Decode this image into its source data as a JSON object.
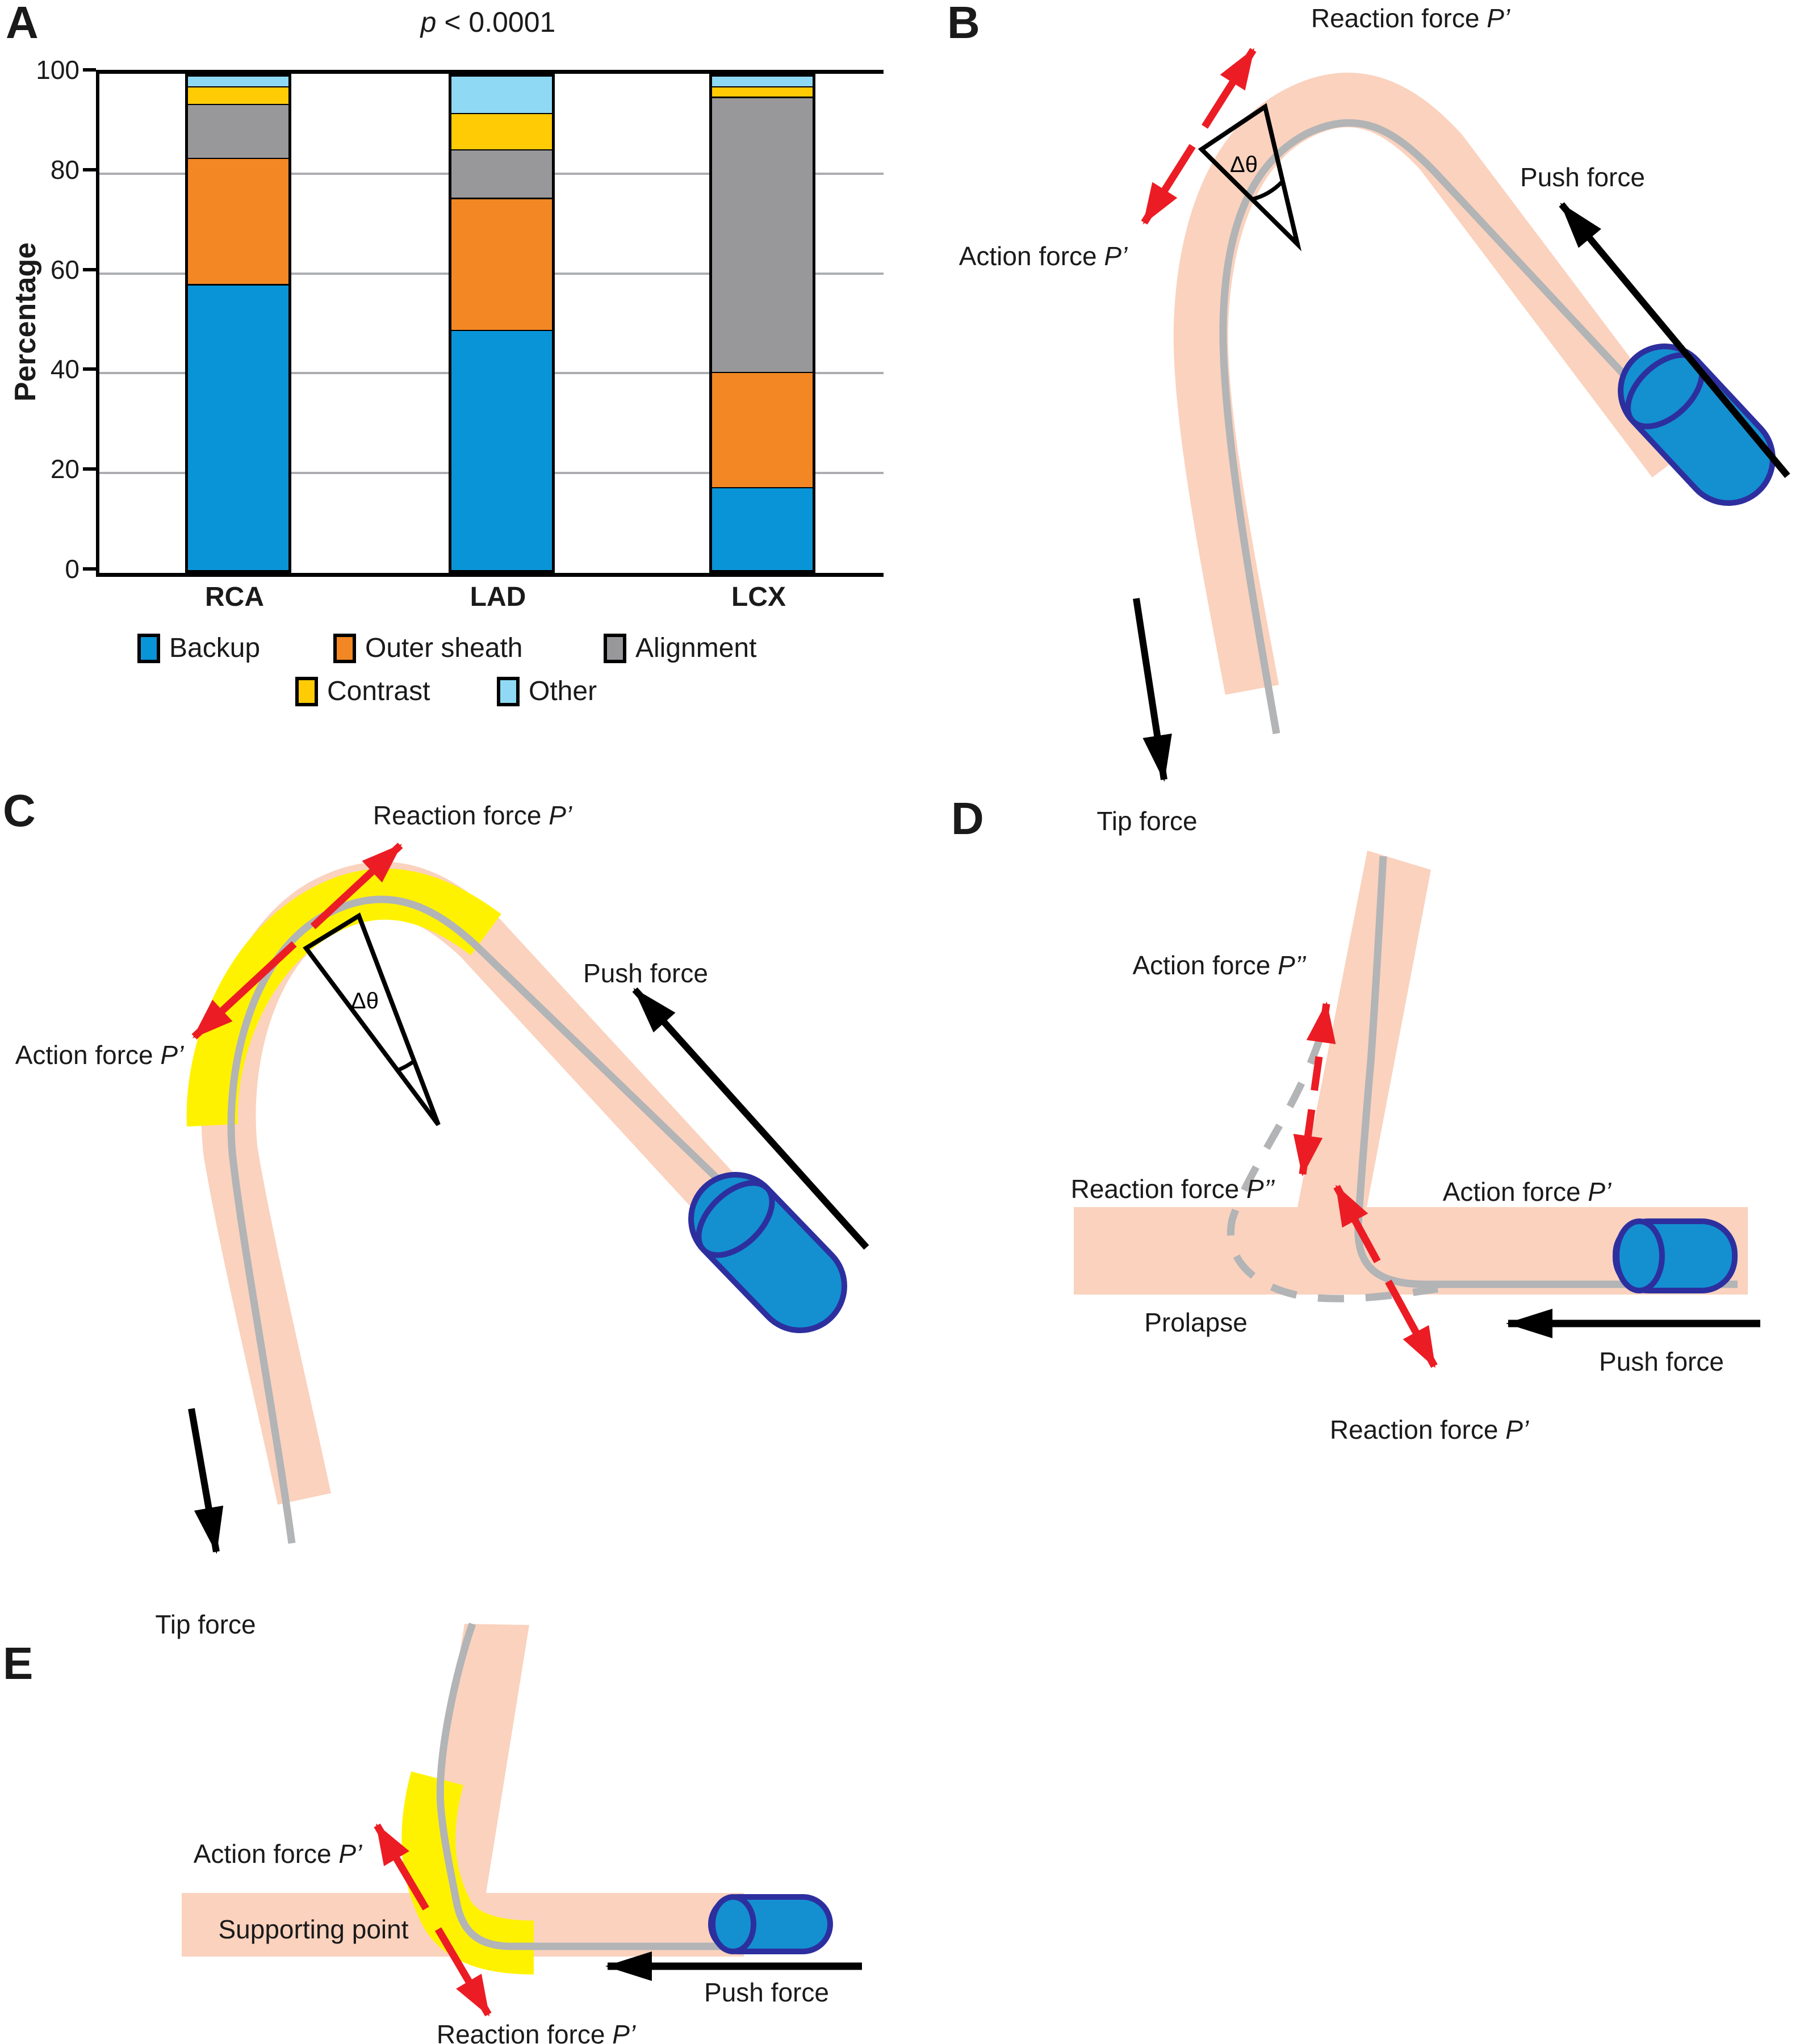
{
  "panels": {
    "a": "A",
    "b": "B",
    "c": "C",
    "d": "D",
    "e": "E"
  },
  "chart_data": {
    "type": "stacked_bar",
    "title": "p < 0.0001",
    "title_var": "p",
    "title_rest": " < 0.0001",
    "ylabel": "Percentage",
    "ylim": [
      0,
      100
    ],
    "yticks": [
      0,
      20,
      40,
      60,
      80,
      100
    ],
    "grid": true,
    "legend_position": "bottom",
    "categories": [
      "RCA",
      "LAD",
      "LCX"
    ],
    "series": [
      {
        "name": "Backup",
        "color": "#0A94D8",
        "values": [
          57.9,
          48.7,
          17.2
        ]
      },
      {
        "name": "Outer sheath",
        "color": "#F28723",
        "values": [
          25.3,
          26.5,
          23.1
        ]
      },
      {
        "name": "Alignment",
        "color": "#98989A",
        "values": [
          10.8,
          9.7,
          55.1
        ]
      },
      {
        "name": "Contrast",
        "color": "#FFCB05",
        "values": [
          3.5,
          7.3,
          2.1
        ]
      },
      {
        "name": "Other",
        "color": "#8FD9F5",
        "values": [
          2.5,
          7.8,
          2.5
        ]
      }
    ],
    "legend_rows": [
      [
        "Backup",
        "Outer sheath",
        "Alignment"
      ],
      [
        "Contrast",
        "Other"
      ]
    ]
  },
  "panel_b": {
    "reaction_prefix": "Reaction force ",
    "reaction_var": "P’",
    "action_prefix": "Action force ",
    "action_var": "P’",
    "push": "Push force",
    "tip": "Tip force",
    "angle": "Δθ"
  },
  "panel_c": {
    "reaction_prefix": "Reaction force ",
    "reaction_var": "P’",
    "action_prefix": "Action force ",
    "action_var": "P’",
    "push": "Push force",
    "tip": "Tip force",
    "angle": "Δθ"
  },
  "panel_d": {
    "action2_prefix": "Action force ",
    "action2_var": "P’’",
    "reaction2_prefix": "Reaction force ",
    "reaction2_var": "P’’",
    "action1_prefix": "Action force ",
    "action1_var": "P’",
    "reaction1_prefix": "Reaction force ",
    "reaction1_var": "P’",
    "prolapse": "Prolapse",
    "push": "Push force"
  },
  "panel_e": {
    "action_prefix": "Action force ",
    "action_var": "P’",
    "supporting": "Supporting point",
    "reaction_prefix": "Reaction force ",
    "reaction_var": "P’",
    "push": "Push force"
  },
  "colors": {
    "vessel": "#FAD2BE",
    "guidewire": "#B2B4B6",
    "extension_yellow": "#FFF200",
    "catheter_fill": "#1490D0",
    "catheter_stroke": "#2D2F9F",
    "arrow_red": "#EC1C24",
    "arrow_black": "#000000",
    "axis_black": "#000000",
    "grid_gray": "#ABADB0"
  }
}
